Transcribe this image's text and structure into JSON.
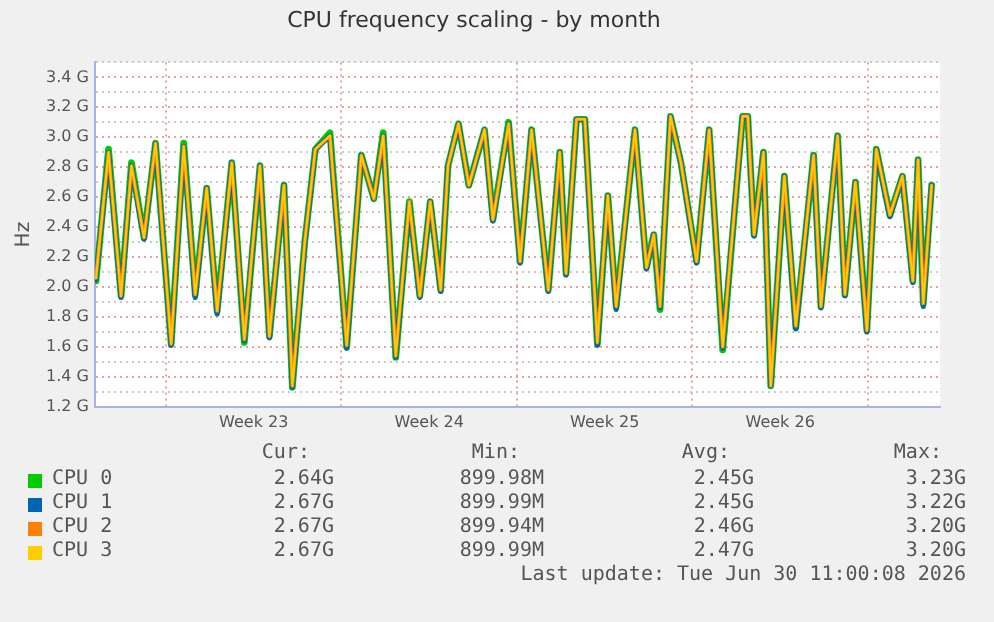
{
  "chart_data": {
    "type": "line",
    "title": "CPU frequency scaling - by month",
    "ylabel": "Hz",
    "x": [
      "2026-05-29T05:00",
      "2026-05-29T17:00",
      "2026-05-30T05:00",
      "2026-05-30T15:00",
      "2026-05-31T03:00",
      "2026-05-31T14:00",
      "2026-06-01T05:00",
      "2026-06-01T17:00",
      "2026-06-02T04:00",
      "2026-06-02T15:00",
      "2026-06-03T01:00",
      "2026-06-03T15:00",
      "2026-06-04T03:00",
      "2026-06-04T18:00",
      "2026-06-05T03:00",
      "2026-06-05T17:00",
      "2026-06-06T01:00",
      "2026-06-06T13:00",
      "2026-06-06T23:00",
      "2026-06-07T13:00",
      "2026-06-08T05:00",
      "2026-06-08T19:00",
      "2026-06-09T07:00",
      "2026-06-09T16:00",
      "2026-06-10T04:00",
      "2026-06-10T17:00",
      "2026-06-11T03:00",
      "2026-06-11T13:00",
      "2026-06-11T23:00",
      "2026-06-12T06:00",
      "2026-06-12T16:00",
      "2026-06-13T02:00",
      "2026-06-13T17:00",
      "2026-06-14T01:00",
      "2026-06-14T16:00",
      "2026-06-15T03:00",
      "2026-06-15T14:00",
      "2026-06-16T06:00",
      "2026-06-16T17:00",
      "2026-06-16T23:00",
      "2026-06-17T09:00",
      "2026-06-17T17:00",
      "2026-06-18T05:00",
      "2026-06-18T15:00",
      "2026-06-18T23:00",
      "2026-06-19T17:00",
      "2026-06-20T04:00",
      "2026-06-20T11:00",
      "2026-06-20T17:00",
      "2026-06-21T03:00",
      "2026-06-21T13:00",
      "2026-06-22T04:00",
      "2026-06-22T16:00",
      "2026-06-23T05:00",
      "2026-06-24T00:00",
      "2026-06-24T05:00",
      "2026-06-24T11:00",
      "2026-06-24T20:00",
      "2026-06-25T03:00",
      "2026-06-25T16:00",
      "2026-06-26T03:00",
      "2026-06-26T20:00",
      "2026-06-27T03:00",
      "2026-06-27T19:00",
      "2026-06-28T02:00",
      "2026-06-28T12:00",
      "2026-06-28T23:00",
      "2026-06-29T08:00",
      "2026-06-29T21:00",
      "2026-06-30T09:00",
      "2026-06-30T19:00",
      "2026-07-01T00:00",
      "2026-07-01T05:00",
      "2026-07-01T13:00"
    ],
    "series": [
      {
        "name": "CPU 0",
        "color": "#00cc00",
        "values": [
          2.04,
          2.92,
          1.94,
          2.83,
          2.33,
          2.96,
          1.62,
          2.96,
          1.95,
          2.66,
          1.84,
          2.83,
          1.63,
          2.81,
          1.67,
          2.68,
          1.33,
          2.31,
          2.92,
          3.03,
          1.6,
          2.88,
          2.59,
          3.03,
          1.53,
          2.57,
          1.94,
          2.57,
          1.98,
          2.81,
          3.09,
          2.68,
          3.05,
          2.45,
          3.1,
          2.17,
          3.05,
          1.98,
          2.9,
          2.09,
          3.12,
          3.12,
          1.62,
          2.61,
          1.87,
          3.05,
          2.13,
          2.35,
          1.85,
          3.14,
          2.83,
          2.17,
          3.05,
          1.58,
          3.14,
          3.14,
          2.35,
          2.9,
          1.34,
          2.74,
          1.73,
          2.88,
          1.87,
          3.01,
          1.95,
          2.7,
          1.71,
          2.92,
          2.48,
          2.74,
          2.04,
          2.85,
          1.89,
          2.68
        ]
      },
      {
        "name": "CPU 1",
        "color": "#0066b3",
        "values": [
          2.05,
          2.9,
          1.93,
          2.81,
          2.32,
          2.96,
          1.61,
          2.94,
          1.93,
          2.66,
          1.82,
          2.83,
          1.64,
          2.81,
          1.66,
          2.68,
          1.33,
          2.3,
          2.92,
          3.01,
          1.59,
          2.88,
          2.59,
          3.01,
          1.53,
          2.56,
          1.93,
          2.57,
          1.97,
          2.81,
          3.09,
          2.68,
          3.05,
          2.44,
          3.09,
          2.16,
          3.05,
          1.97,
          2.9,
          2.08,
          3.12,
          3.12,
          1.61,
          2.61,
          1.85,
          3.05,
          2.12,
          2.35,
          1.86,
          3.14,
          2.83,
          2.16,
          3.05,
          1.59,
          3.14,
          3.14,
          2.34,
          2.9,
          1.34,
          2.74,
          1.72,
          2.88,
          1.86,
          3.01,
          1.94,
          2.7,
          1.7,
          2.92,
          2.47,
          2.74,
          2.03,
          2.85,
          1.87,
          2.68
        ]
      },
      {
        "name": "CPU 2",
        "color": "#ff8000",
        "values": [
          2.06,
          2.9,
          1.94,
          2.81,
          2.33,
          2.96,
          1.62,
          2.94,
          1.95,
          2.66,
          1.84,
          2.83,
          1.65,
          2.81,
          1.67,
          2.68,
          1.34,
          2.31,
          2.92,
          3.01,
          1.61,
          2.88,
          2.59,
          3.01,
          1.54,
          2.57,
          1.94,
          2.57,
          1.98,
          2.81,
          3.09,
          2.68,
          3.05,
          2.45,
          3.09,
          2.17,
          3.05,
          1.98,
          2.9,
          2.09,
          3.12,
          3.12,
          1.63,
          2.61,
          1.87,
          3.05,
          2.13,
          2.35,
          1.87,
          3.14,
          2.83,
          2.17,
          3.05,
          1.6,
          3.14,
          3.14,
          2.35,
          2.9,
          1.34,
          2.74,
          1.74,
          2.88,
          1.87,
          3.01,
          1.95,
          2.7,
          1.71,
          2.92,
          2.48,
          2.74,
          2.04,
          2.85,
          1.89,
          2.68
        ]
      },
      {
        "name": "CPU 3",
        "color": "#ffcc00",
        "values": [
          2.06,
          2.9,
          1.94,
          2.81,
          2.33,
          2.96,
          1.62,
          2.94,
          1.95,
          2.66,
          1.84,
          2.83,
          1.65,
          2.81,
          1.67,
          2.68,
          1.34,
          2.31,
          2.92,
          3.01,
          1.61,
          2.88,
          2.59,
          3.01,
          1.54,
          2.57,
          1.94,
          2.57,
          1.98,
          2.81,
          3.09,
          2.68,
          3.05,
          2.45,
          3.09,
          2.17,
          3.05,
          1.98,
          2.9,
          2.09,
          3.12,
          3.12,
          1.63,
          2.61,
          1.87,
          3.05,
          2.13,
          2.35,
          1.87,
          3.14,
          2.83,
          2.17,
          3.05,
          1.6,
          3.14,
          3.14,
          2.35,
          2.9,
          1.34,
          2.74,
          1.74,
          2.88,
          1.87,
          3.01,
          1.95,
          2.7,
          1.71,
          2.92,
          2.48,
          2.74,
          2.04,
          2.85,
          1.89,
          2.68
        ]
      }
    ],
    "xlim": [
      "2026-05-29T04:00",
      "2026-07-01T21:00"
    ],
    "xticks": [
      {
        "value": "2026-06-01T00:00",
        "label": null
      },
      {
        "value": "2026-06-04T12:00",
        "label": "Week 23"
      },
      {
        "value": "2026-06-08T00:00",
        "label": null
      },
      {
        "value": "2026-06-11T12:00",
        "label": "Week 24"
      },
      {
        "value": "2026-06-15T00:00",
        "label": null
      },
      {
        "value": "2026-06-18T12:00",
        "label": "Week 25"
      },
      {
        "value": "2026-06-22T00:00",
        "label": null
      },
      {
        "value": "2026-06-25T12:00",
        "label": "Week 26"
      },
      {
        "value": "2026-06-29T00:00",
        "label": null
      }
    ],
    "ylim": [
      1.2,
      3.5
    ],
    "yticks": [
      {
        "value": 1.2,
        "label": "1.2 G"
      },
      {
        "value": 1.3,
        "label": null
      },
      {
        "value": 1.4,
        "label": "1.4 G"
      },
      {
        "value": 1.5,
        "label": null
      },
      {
        "value": 1.6,
        "label": "1.6 G"
      },
      {
        "value": 1.7,
        "label": null
      },
      {
        "value": 1.8,
        "label": "1.8 G"
      },
      {
        "value": 1.9,
        "label": null
      },
      {
        "value": 2.0,
        "label": "2.0 G"
      },
      {
        "value": 2.1,
        "label": null
      },
      {
        "value": 2.2,
        "label": "2.2 G"
      },
      {
        "value": 2.3,
        "label": null
      },
      {
        "value": 2.4,
        "label": "2.4 G"
      },
      {
        "value": 2.5,
        "label": null
      },
      {
        "value": 2.6,
        "label": "2.6 G"
      },
      {
        "value": 2.7,
        "label": null
      },
      {
        "value": 2.8,
        "label": "2.8 G"
      },
      {
        "value": 2.9,
        "label": null
      },
      {
        "value": 3.0,
        "label": "3.0 G"
      },
      {
        "value": 3.1,
        "label": null
      },
      {
        "value": 3.2,
        "label": "3.2 G"
      },
      {
        "value": 3.3,
        "label": null
      },
      {
        "value": 3.4,
        "label": "3.4 G"
      },
      {
        "value": 3.5,
        "label": null
      }
    ],
    "grid": true,
    "legend": "bottom",
    "marker": "none",
    "line_style": "solid",
    "annotations": [
      "Cur:",
      "Min:",
      "Avg:",
      "Max:",
      "2.64G",
      "899.98M",
      "2.45G",
      "3.23G",
      "2.67G",
      "899.99M",
      "2.45G",
      "3.22G",
      "2.67G",
      "899.94M",
      "2.46G",
      "3.20G",
      "2.67G",
      "899.99M",
      "2.47G",
      "3.20G",
      "Last update: Tue Jun 30 11:00:08 2026"
    ]
  }
}
